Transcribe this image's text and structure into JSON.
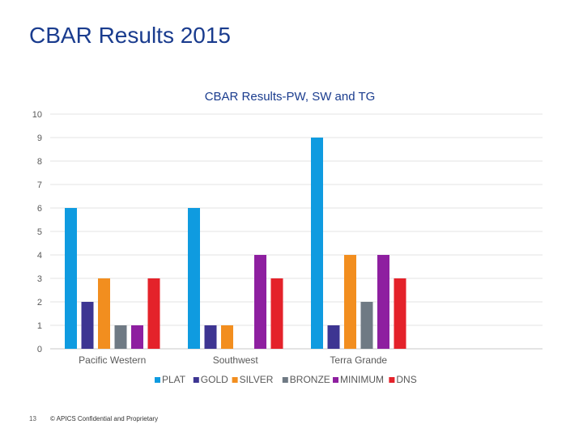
{
  "slide": {
    "title": "CBAR Results 2015",
    "page_number": "13",
    "copyright": "© APICS Confidential and Proprietary"
  },
  "chart_data": {
    "type": "bar",
    "title": "CBAR Results-PW, SW and TG",
    "xlabel": "",
    "ylabel": "",
    "ylim": [
      0,
      10
    ],
    "yticks": [
      0,
      1,
      2,
      3,
      4,
      5,
      6,
      7,
      8,
      9,
      10
    ],
    "grid": true,
    "legend_position": "bottom",
    "categories": [
      "Pacific Western",
      "Southwest",
      "Terra Grande"
    ],
    "series": [
      {
        "name": "PLAT",
        "color": "#0f9be0",
        "values": [
          6,
          6,
          9
        ]
      },
      {
        "name": "GOLD",
        "color": "#3d3592",
        "values": [
          2,
          1,
          1
        ]
      },
      {
        "name": "SILVER",
        "color": "#f28e1f",
        "values": [
          3,
          1,
          4
        ]
      },
      {
        "name": "BRONZE",
        "color": "#6f7a84",
        "values": [
          1,
          0,
          2
        ]
      },
      {
        "name": "MINIMUM",
        "color": "#8e1fa0",
        "values": [
          1,
          4,
          4
        ]
      },
      {
        "name": "DNS",
        "color": "#e4222a",
        "values": [
          3,
          3,
          3
        ]
      }
    ]
  }
}
